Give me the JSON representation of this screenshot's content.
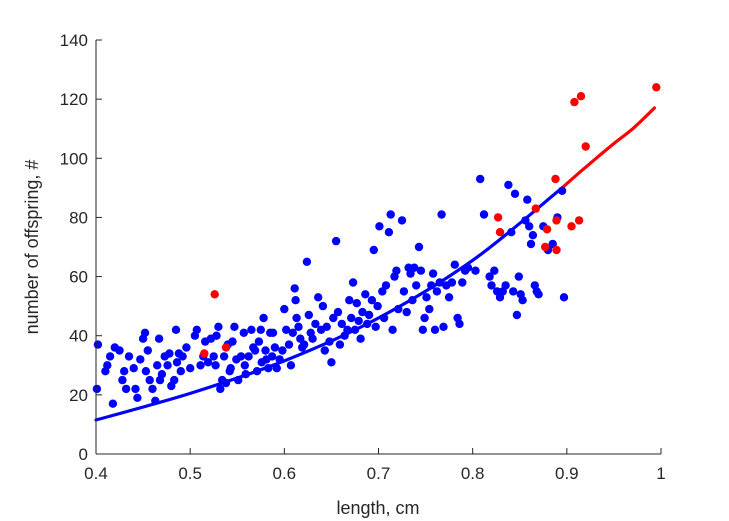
{
  "chart_data": {
    "type": "scatter",
    "title": "",
    "xlabel": "length, cm",
    "ylabel": "number of offspring, #",
    "xlim": [
      0.4,
      1.0
    ],
    "ylim": [
      0,
      140
    ],
    "xticks": [
      "0.4",
      "0.5",
      "0.6",
      "0.7",
      "0.8",
      "0.9",
      "1"
    ],
    "yticks": [
      "0",
      "20",
      "40",
      "60",
      "80",
      "100",
      "120",
      "140"
    ],
    "grid": false,
    "legend": "none",
    "series": [
      {
        "color": "#0000ff",
        "marker": "dot",
        "points": [
          [
            0.401,
            22
          ],
          [
            0.402,
            37
          ],
          [
            0.41,
            28
          ],
          [
            0.412,
            30
          ],
          [
            0.415,
            33
          ],
          [
            0.418,
            17
          ],
          [
            0.42,
            36
          ],
          [
            0.425,
            35
          ],
          [
            0.428,
            25
          ],
          [
            0.43,
            28
          ],
          [
            0.432,
            22
          ],
          [
            0.435,
            33
          ],
          [
            0.44,
            29
          ],
          [
            0.442,
            22
          ],
          [
            0.444,
            19
          ],
          [
            0.447,
            32
          ],
          [
            0.45,
            39
          ],
          [
            0.452,
            41
          ],
          [
            0.453,
            28
          ],
          [
            0.455,
            35
          ],
          [
            0.457,
            25
          ],
          [
            0.46,
            22
          ],
          [
            0.463,
            18
          ],
          [
            0.465,
            30
          ],
          [
            0.467,
            39
          ],
          [
            0.468,
            25
          ],
          [
            0.47,
            27
          ],
          [
            0.473,
            33
          ],
          [
            0.476,
            30
          ],
          [
            0.478,
            34
          ],
          [
            0.48,
            23
          ],
          [
            0.483,
            25
          ],
          [
            0.485,
            42
          ],
          [
            0.486,
            31
          ],
          [
            0.488,
            34
          ],
          [
            0.49,
            28
          ],
          [
            0.492,
            33
          ],
          [
            0.496,
            36
          ],
          [
            0.5,
            29
          ],
          [
            0.505,
            40
          ],
          [
            0.507,
            42
          ],
          [
            0.511,
            30
          ],
          [
            0.514,
            33
          ],
          [
            0.516,
            38
          ],
          [
            0.519,
            31
          ],
          [
            0.522,
            39
          ],
          [
            0.525,
            33
          ],
          [
            0.527,
            30
          ],
          [
            0.528,
            40
          ],
          [
            0.53,
            43
          ],
          [
            0.532,
            22
          ],
          [
            0.534,
            25
          ],
          [
            0.536,
            33
          ],
          [
            0.538,
            24
          ],
          [
            0.54,
            37
          ],
          [
            0.542,
            28
          ],
          [
            0.543,
            29
          ],
          [
            0.545,
            38
          ],
          [
            0.547,
            43
          ],
          [
            0.549,
            32
          ],
          [
            0.551,
            25
          ],
          [
            0.554,
            33
          ],
          [
            0.557,
            41
          ],
          [
            0.558,
            30
          ],
          [
            0.559,
            27
          ],
          [
            0.562,
            33
          ],
          [
            0.565,
            42
          ],
          [
            0.567,
            36
          ],
          [
            0.569,
            35
          ],
          [
            0.571,
            28
          ],
          [
            0.573,
            38
          ],
          [
            0.575,
            42
          ],
          [
            0.576,
            31
          ],
          [
            0.578,
            46
          ],
          [
            0.58,
            35
          ],
          [
            0.581,
            32
          ],
          [
            0.583,
            29
          ],
          [
            0.585,
            41
          ],
          [
            0.587,
            33
          ],
          [
            0.588,
            41
          ],
          [
            0.59,
            36
          ],
          [
            0.592,
            29
          ],
          [
            0.595,
            32
          ],
          [
            0.598,
            35
          ],
          [
            0.6,
            49
          ],
          [
            0.602,
            42
          ],
          [
            0.605,
            37
          ],
          [
            0.607,
            30
          ],
          [
            0.609,
            41
          ],
          [
            0.611,
            56
          ],
          [
            0.612,
            52
          ],
          [
            0.613,
            46
          ],
          [
            0.615,
            43
          ],
          [
            0.617,
            39
          ],
          [
            0.619,
            36
          ],
          [
            0.621,
            37
          ],
          [
            0.624,
            65
          ],
          [
            0.626,
            47
          ],
          [
            0.628,
            41
          ],
          [
            0.63,
            39
          ],
          [
            0.633,
            44
          ],
          [
            0.636,
            53
          ],
          [
            0.639,
            42
          ],
          [
            0.641,
            50
          ],
          [
            0.643,
            35
          ],
          [
            0.645,
            43
          ],
          [
            0.648,
            38
          ],
          [
            0.65,
            31
          ],
          [
            0.652,
            46
          ],
          [
            0.655,
            72
          ],
          [
            0.657,
            48
          ],
          [
            0.659,
            37
          ],
          [
            0.661,
            44
          ],
          [
            0.664,
            40
          ],
          [
            0.667,
            42
          ],
          [
            0.669,
            52
          ],
          [
            0.671,
            46
          ],
          [
            0.673,
            58
          ],
          [
            0.675,
            42
          ],
          [
            0.677,
            51
          ],
          [
            0.679,
            45
          ],
          [
            0.681,
            39
          ],
          [
            0.683,
            48
          ],
          [
            0.686,
            54
          ],
          [
            0.688,
            44
          ],
          [
            0.69,
            47
          ],
          [
            0.693,
            52
          ],
          [
            0.695,
            69
          ],
          [
            0.697,
            43
          ],
          [
            0.699,
            50
          ],
          [
            0.701,
            77
          ],
          [
            0.704,
            55
          ],
          [
            0.706,
            46
          ],
          [
            0.708,
            57
          ],
          [
            0.711,
            75
          ],
          [
            0.713,
            81
          ],
          [
            0.715,
            42
          ],
          [
            0.717,
            60
          ],
          [
            0.719,
            62
          ],
          [
            0.721,
            49
          ],
          [
            0.725,
            79
          ],
          [
            0.727,
            55
          ],
          [
            0.73,
            48
          ],
          [
            0.732,
            63
          ],
          [
            0.734,
            61
          ],
          [
            0.736,
            52
          ],
          [
            0.738,
            63
          ],
          [
            0.74,
            57
          ],
          [
            0.743,
            70
          ],
          [
            0.745,
            62
          ],
          [
            0.747,
            42
          ],
          [
            0.749,
            46
          ],
          [
            0.751,
            53
          ],
          [
            0.754,
            49
          ],
          [
            0.756,
            57
          ],
          [
            0.758,
            61
          ],
          [
            0.76,
            42
          ],
          [
            0.762,
            55
          ],
          [
            0.765,
            58
          ],
          [
            0.767,
            81
          ],
          [
            0.769,
            43
          ],
          [
            0.772,
            57
          ],
          [
            0.775,
            53
          ],
          [
            0.778,
            58
          ],
          [
            0.781,
            64
          ],
          [
            0.784,
            46
          ],
          [
            0.786,
            44
          ],
          [
            0.789,
            58
          ],
          [
            0.792,
            62
          ],
          [
            0.795,
            63
          ],
          [
            0.803,
            62
          ],
          [
            0.808,
            93
          ],
          [
            0.812,
            81
          ],
          [
            0.818,
            60
          ],
          [
            0.82,
            57
          ],
          [
            0.823,
            62
          ],
          [
            0.826,
            55
          ],
          [
            0.829,
            53
          ],
          [
            0.832,
            55
          ],
          [
            0.835,
            57
          ],
          [
            0.838,
            91
          ],
          [
            0.841,
            75
          ],
          [
            0.843,
            55
          ],
          [
            0.845,
            88
          ],
          [
            0.847,
            47
          ],
          [
            0.849,
            60
          ],
          [
            0.851,
            54
          ],
          [
            0.853,
            52
          ],
          [
            0.856,
            79
          ],
          [
            0.858,
            86
          ],
          [
            0.86,
            77
          ],
          [
            0.862,
            71
          ],
          [
            0.864,
            74
          ],
          [
            0.866,
            57
          ],
          [
            0.868,
            55
          ],
          [
            0.87,
            54
          ],
          [
            0.875,
            77
          ],
          [
            0.88,
            69
          ],
          [
            0.885,
            71
          ],
          [
            0.89,
            80
          ],
          [
            0.895,
            89
          ],
          [
            0.897,
            53
          ]
        ]
      },
      {
        "color": "#ff0000",
        "marker": "dot",
        "points": [
          [
            0.515,
            34
          ],
          [
            0.526,
            54
          ],
          [
            0.538,
            36
          ],
          [
            0.827,
            80
          ],
          [
            0.829,
            75
          ],
          [
            0.867,
            83
          ],
          [
            0.877,
            70
          ],
          [
            0.879,
            76
          ],
          [
            0.888,
            93
          ],
          [
            0.889,
            69
          ],
          [
            0.889,
            79
          ],
          [
            0.905,
            77
          ],
          [
            0.908,
            119
          ],
          [
            0.913,
            79
          ],
          [
            0.915,
            121
          ],
          [
            0.92,
            104
          ],
          [
            0.995,
            124
          ]
        ]
      }
    ],
    "fit_curve": {
      "blue_segment": {
        "color": "#0000ff",
        "x": [
          0.4,
          0.5,
          0.6,
          0.7,
          0.8,
          0.895
        ],
        "y": [
          11.5,
          20.5,
          31.5,
          46.0,
          65.5,
          90.0
        ]
      },
      "red_segment": {
        "color": "#ff0000",
        "x": [
          0.895,
          0.92,
          0.95,
          0.97,
          0.993
        ],
        "y": [
          90.0,
          97.0,
          105.0,
          110.0,
          117.0
        ]
      }
    }
  }
}
